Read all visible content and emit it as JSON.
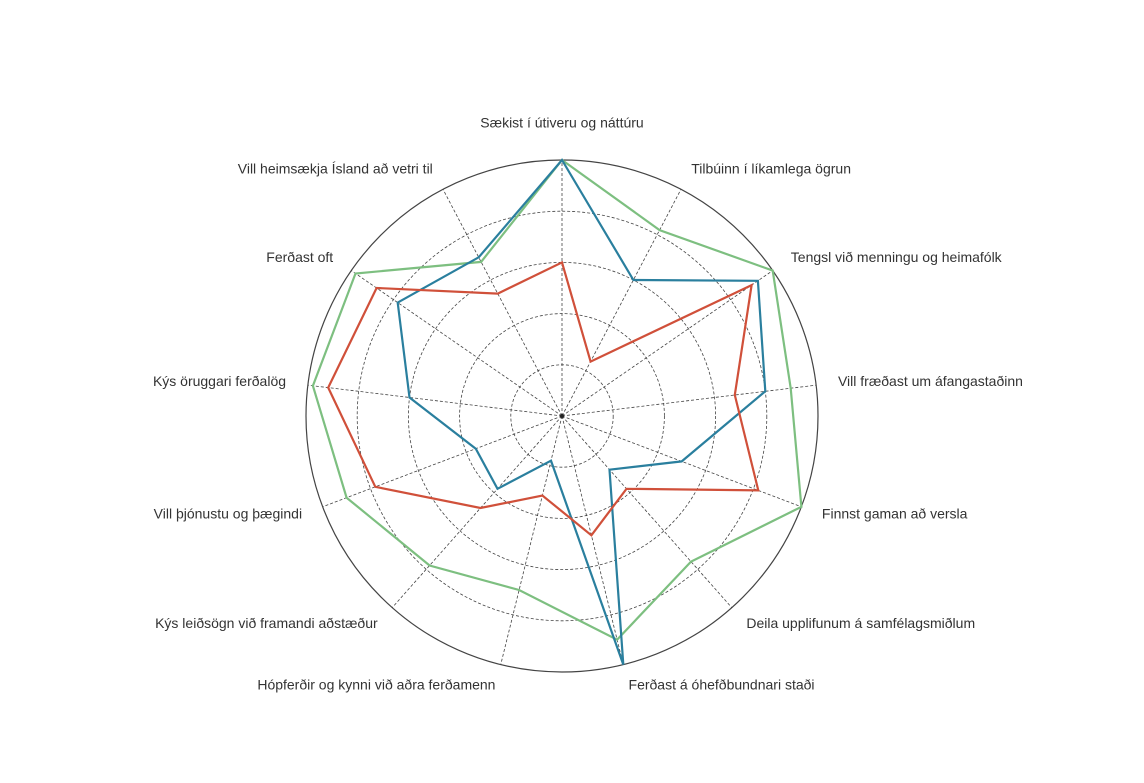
{
  "chart_data": {
    "type": "radar",
    "axes": [
      "Sækist í útiveru og náttúru",
      "Tilbúinn í líkamlega ögrun",
      "Tengsl við menningu og heimafólk",
      "Vill fræðast um áfangastaðinn",
      "Finnst gaman að versla",
      "Deila upplifunum á samfélagsmiðlum",
      "Ferðast á óhefðbundnari staði",
      "Hópferðir og kynni við aðra ferðamenn",
      "Kýs leiðsögn við framandi aðstæður",
      "Vill þjónustu og þægindi",
      "Kýs öruggari ferðalög",
      "Ferðast oft",
      "Vill heimsækja Ísland að vetri til"
    ],
    "series": [
      {
        "color": "#7dbf80",
        "values": [
          5,
          4.1,
          5,
          4.5,
          5,
          3.8,
          4.5,
          3.5,
          3.9,
          4.5,
          4.9,
          4.9,
          3.4
        ]
      },
      {
        "color": "#2a7f9e",
        "values": [
          5,
          3,
          4.65,
          4,
          2.5,
          1.4,
          5,
          0.9,
          1.9,
          1.8,
          3,
          3.9,
          3.5
        ]
      },
      {
        "color": "#d0503a",
        "values": [
          3,
          1.2,
          4.5,
          3.4,
          4.1,
          1.9,
          2.4,
          1.6,
          2.4,
          3.9,
          4.6,
          4.4,
          2.7
        ]
      }
    ],
    "rlim": [
      0,
      5
    ],
    "rticks": [
      1,
      2,
      3,
      4,
      5
    ],
    "grid": true
  }
}
